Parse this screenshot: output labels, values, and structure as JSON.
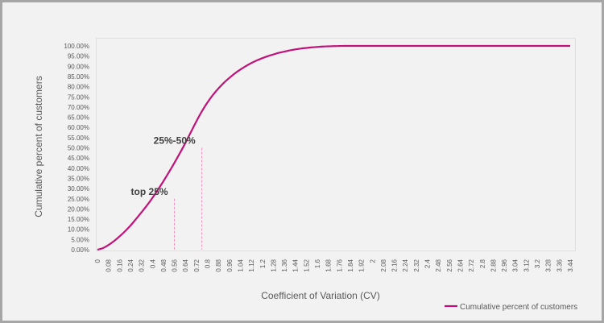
{
  "chart_data": {
    "type": "line",
    "xlabel": "Coefficient of Variation  (CV)",
    "ylabel": "Cumulative percent of customers",
    "x_ticks": [
      "0",
      "0.08",
      "0.16",
      "0.24",
      "0.32",
      "0.4",
      "0.48",
      "0.56",
      "0.64",
      "0.72",
      "0.8",
      "0.88",
      "0.96",
      "1.04",
      "1.12",
      "1.2",
      "1.28",
      "1.36",
      "1.44",
      "1.52",
      "1.6",
      "1.68",
      "1.76",
      "1.84",
      "1.92",
      "2",
      "2.08",
      "2.16",
      "2.24",
      "2.32",
      "2.4",
      "2.48",
      "2.56",
      "2.64",
      "2.72",
      "2.8",
      "2.88",
      "2.96",
      "3.04",
      "3.12",
      "3.2",
      "3.28",
      "3.36",
      "3.44"
    ],
    "y_ticks": [
      "0.00%",
      "5.00%",
      "10.00%",
      "15.00%",
      "20.00%",
      "25.00%",
      "30.00%",
      "35.00%",
      "40.00%",
      "45.00%",
      "50.00%",
      "55.00%",
      "60.00%",
      "65.00%",
      "70.00%",
      "75.00%",
      "80.00%",
      "85.00%",
      "90.00%",
      "95.00%",
      "100.00%"
    ],
    "ylim": [
      0,
      100
    ],
    "xlim": [
      0,
      3.44
    ],
    "grid": false,
    "legend_position": "bottom-right",
    "series": [
      {
        "name": "Cumulative percent of customers",
        "color": "#c0137a",
        "x": [
          0,
          0.04,
          0.08,
          0.12,
          0.16,
          0.2,
          0.24,
          0.28,
          0.32,
          0.36,
          0.4,
          0.44,
          0.48,
          0.52,
          0.56,
          0.6,
          0.64,
          0.68,
          0.72,
          0.76,
          0.8,
          0.84,
          0.88,
          0.92,
          0.96,
          1.0,
          1.04,
          1.08,
          1.12,
          1.16,
          1.2,
          1.24,
          1.28,
          1.32,
          1.36,
          1.4,
          1.44,
          1.48,
          1.52,
          1.56,
          1.6,
          1.64,
          1.68,
          1.72,
          1.76,
          1.8,
          1.84,
          1.92,
          2.0,
          2.2,
          2.4,
          2.6,
          2.8,
          3.0,
          3.2,
          3.44
        ],
        "y": [
          0,
          0.8,
          2.3,
          4.2,
          6.5,
          9.0,
          11.8,
          15.0,
          18.3,
          21.7,
          25.4,
          29.4,
          33.6,
          38.0,
          42.6,
          47.4,
          52.4,
          57.7,
          63.0,
          67.9,
          72.2,
          75.9,
          79.1,
          81.9,
          84.3,
          86.5,
          88.4,
          90.1,
          91.6,
          92.9,
          94.0,
          95.0,
          95.8,
          96.6,
          97.2,
          97.8,
          98.3,
          98.7,
          99.0,
          99.3,
          99.5,
          99.7,
          99.8,
          99.9,
          99.95,
          100,
          100,
          100,
          100,
          100,
          100,
          100,
          100,
          100,
          100,
          100
        ]
      }
    ],
    "annotations": [
      {
        "text": "top 25%",
        "x": 0.56,
        "y": 25
      },
      {
        "text": "25%-50%",
        "x": 0.76,
        "y": 50
      }
    ]
  }
}
